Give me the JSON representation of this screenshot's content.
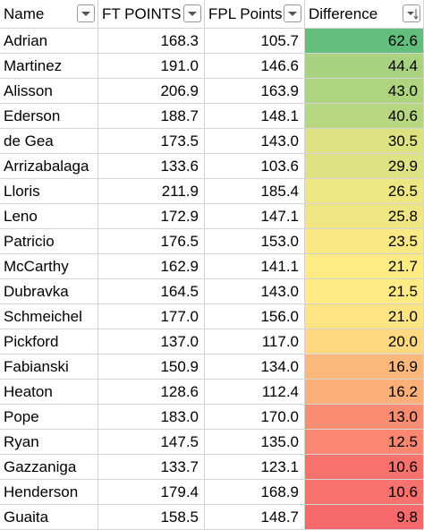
{
  "table": {
    "header": [
      "Name",
      "FT POINTS",
      "FPL Points",
      "Difference"
    ],
    "rows": [
      [
        "Adrian",
        "168.3",
        "105.7",
        "62.6"
      ],
      [
        "Martinez",
        "191.0",
        "146.6",
        "44.4"
      ],
      [
        "Alisson",
        "206.9",
        "163.9",
        "43.0"
      ],
      [
        "Ederson",
        "188.7",
        "148.1",
        "40.6"
      ],
      [
        "de Gea",
        "173.5",
        "143.0",
        "30.5"
      ],
      [
        "Arrizabalaga",
        "133.6",
        "103.6",
        "29.9"
      ],
      [
        "Lloris",
        "211.9",
        "185.4",
        "26.5"
      ],
      [
        "Leno",
        "172.9",
        "147.1",
        "25.8"
      ],
      [
        "Patricio",
        "176.5",
        "153.0",
        "23.5"
      ],
      [
        "McCarthy",
        "162.9",
        "141.1",
        "21.7"
      ],
      [
        "Dubravka",
        "164.5",
        "143.0",
        "21.5"
      ],
      [
        "Schmeichel",
        "177.0",
        "156.0",
        "21.0"
      ],
      [
        "Pickford",
        "137.0",
        "117.0",
        "20.0"
      ],
      [
        "Fabianski",
        "150.9",
        "134.0",
        "16.9"
      ],
      [
        "Heaton",
        "128.6",
        "112.4",
        "16.2"
      ],
      [
        "Pope",
        "183.0",
        "170.0",
        "13.0"
      ],
      [
        "Ryan",
        "147.5",
        "135.0",
        "12.5"
      ],
      [
        "Gazzaniga",
        "133.7",
        "123.1",
        "10.6"
      ],
      [
        "Henderson",
        "179.4",
        "168.9",
        "10.6"
      ],
      [
        "Guaita",
        "158.5",
        "148.7",
        "9.8"
      ]
    ]
  }
}
